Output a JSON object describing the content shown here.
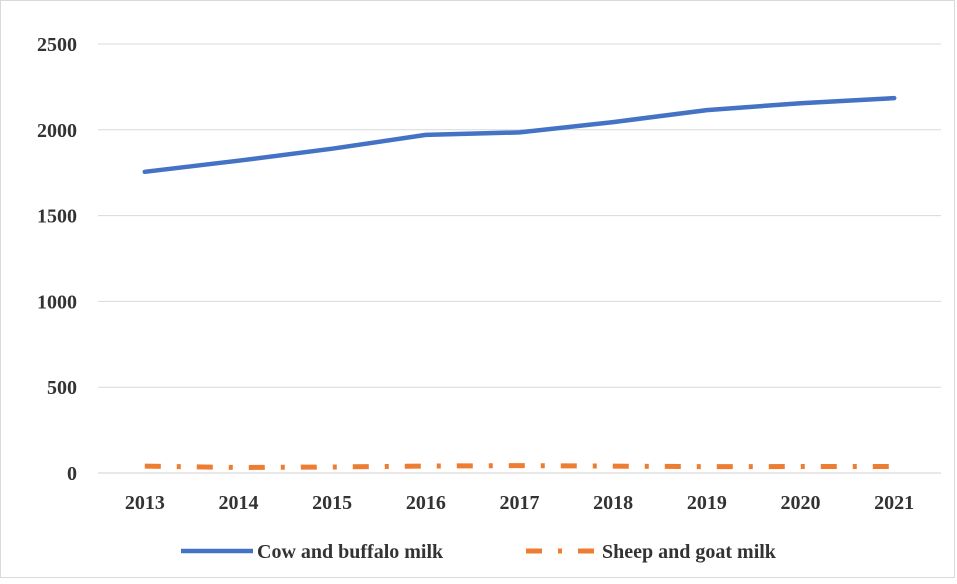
{
  "chart_data": {
    "type": "line",
    "title": "",
    "xlabel": "",
    "ylabel": "",
    "categories": [
      "2013",
      "2014",
      "2015",
      "2016",
      "2017",
      "2018",
      "2019",
      "2020",
      "2021"
    ],
    "ylim": [
      0,
      2500
    ],
    "yticks": [
      0,
      500,
      1000,
      1500,
      2000,
      2500
    ],
    "grid": "horizontal",
    "legend_position": "bottom",
    "series": [
      {
        "name": "Cow and buffalo milk",
        "values": [
          1755,
          1820,
          1890,
          1970,
          1985,
          2045,
          2115,
          2155,
          2185
        ],
        "color": "#4472C4",
        "line_style": "solid"
      },
      {
        "name": "Sheep and goat milk",
        "values": [
          40,
          32,
          35,
          40,
          43,
          40,
          37,
          38,
          38
        ],
        "color": "#ED7D31",
        "line_style": "dash-dot"
      }
    ]
  }
}
